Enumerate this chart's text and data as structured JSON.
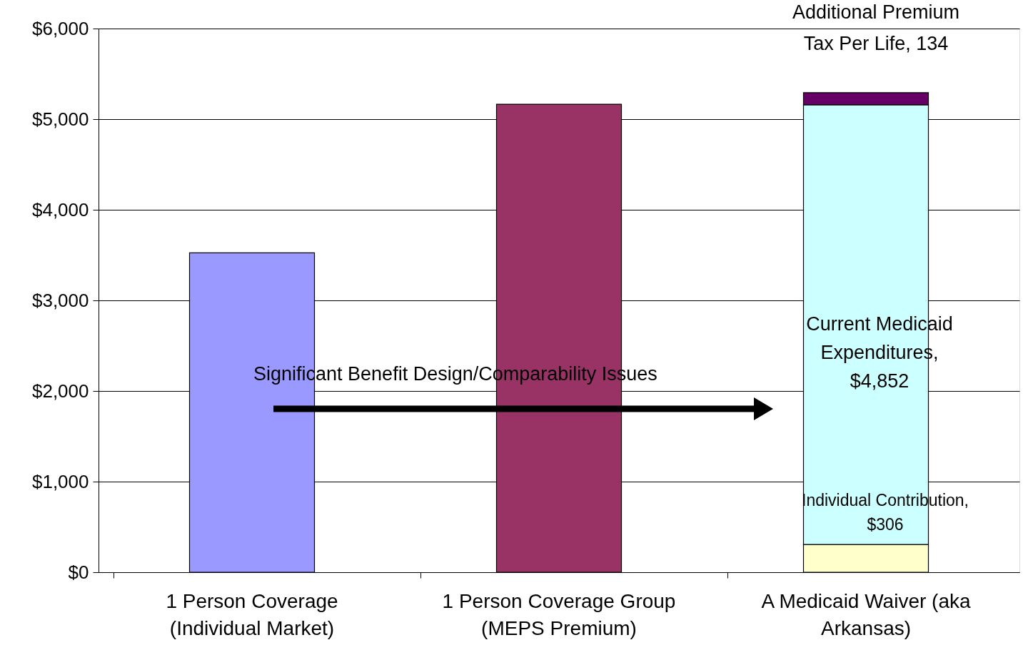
{
  "chart_data": {
    "type": "bar",
    "stacked": true,
    "categories": [
      "1 Person Coverage (Individual Market)",
      "1 Person Coverage Group (MEPS Premium)",
      "A Medicaid Waiver (aka Arkansas)"
    ],
    "series": [
      {
        "color": "#9999ff",
        "values": [
          3525,
          null,
          null
        ]
      },
      {
        "color": "#993366",
        "values": [
          null,
          5165,
          null
        ]
      },
      {
        "color": "#ffffcc",
        "values": [
          null,
          null,
          306
        ]
      },
      {
        "color": "#ccffff",
        "values": [
          null,
          null,
          4852
        ]
      },
      {
        "color": "#660066",
        "values": [
          null,
          null,
          134
        ]
      }
    ],
    "ylim": [
      0,
      6000
    ],
    "yticks": [
      {
        "value": 0,
        "label": "$0"
      },
      {
        "value": 1000,
        "label": "$1,000"
      },
      {
        "value": 2000,
        "label": "$2,000"
      },
      {
        "value": 3000,
        "label": "$3,000"
      },
      {
        "value": 4000,
        "label": "$4,000"
      },
      {
        "value": 5000,
        "label": "$5,000"
      },
      {
        "value": 6000,
        "label": "$6,000"
      }
    ],
    "grid": "y",
    "legend": false,
    "annotations": [
      "Additional Premium Tax Per Life, 134",
      "Current Medicaid Expenditures, $4,852",
      "Individual Contribution, $306",
      "Significant Benefit Design/Comparability Issues"
    ]
  }
}
